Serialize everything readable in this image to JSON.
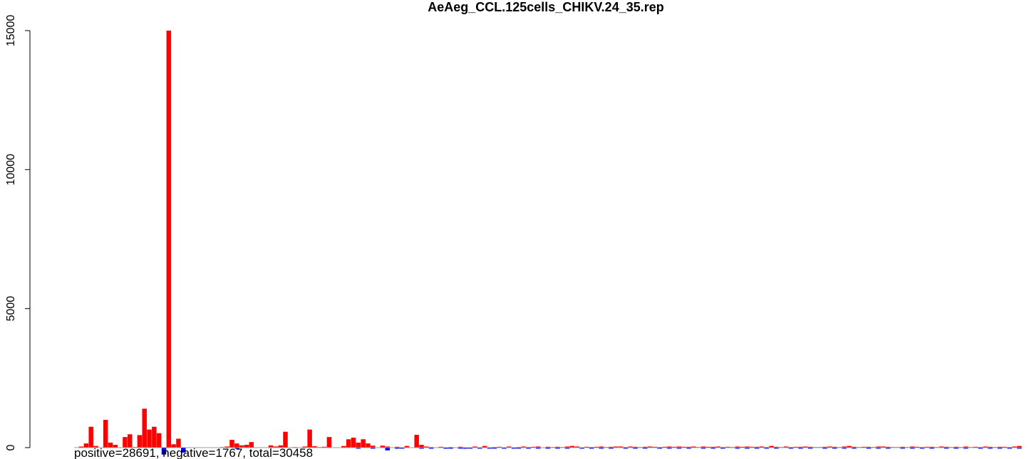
{
  "chart_data": {
    "type": "bar",
    "title": "AeAeg_CCL.125cells_CHIKV.24_35.rep",
    "xlabel": "",
    "ylabel": "",
    "ylim": [
      -50,
      15000
    ],
    "yticks": [
      0,
      5000,
      10000,
      15000
    ],
    "ytick_labels": [
      "0",
      "5000",
      "10000",
      "15000"
    ],
    "grid": false,
    "legend": "none",
    "annotation": "positive=28691, negative=1767, total=30458",
    "colors": {
      "positive": "#ff0000",
      "negative": "#0000ff",
      "baseline": "#999999"
    },
    "positive_values": [
      0,
      40,
      150,
      750,
      60,
      0,
      1000,
      180,
      100,
      0,
      380,
      480,
      20,
      450,
      1400,
      650,
      750,
      520,
      0,
      15000,
      120,
      320,
      0,
      0,
      0,
      0,
      0,
      0,
      0,
      0,
      20,
      40,
      280,
      150,
      80,
      100,
      200,
      0,
      0,
      0,
      80,
      40,
      80,
      570,
      0,
      20,
      0,
      40,
      650,
      50,
      20,
      30,
      380,
      0,
      0,
      60,
      300,
      360,
      180,
      300,
      150,
      70,
      0,
      70,
      40,
      0,
      30,
      0,
      60,
      0,
      460,
      100,
      40,
      20,
      0,
      30,
      0,
      20,
      0,
      30,
      0,
      0,
      40,
      0,
      60,
      0,
      20,
      30,
      0,
      40,
      0,
      20,
      40,
      20,
      30,
      40,
      0,
      30,
      20,
      30,
      20,
      40,
      60,
      40,
      0,
      30,
      20,
      30,
      40,
      20,
      30,
      40,
      40,
      20,
      40,
      30,
      20,
      30,
      40,
      30,
      20,
      30,
      40,
      30,
      40,
      30,
      30,
      40,
      20,
      40,
      30,
      30,
      40,
      20,
      30,
      20,
      40,
      30,
      40,
      30,
      30,
      40,
      20,
      60,
      30,
      20,
      40,
      20,
      30,
      30,
      40,
      30,
      20,
      20,
      30,
      40,
      30,
      20,
      40,
      60,
      30,
      20,
      30,
      30,
      20,
      40,
      40,
      30,
      20,
      20,
      30,
      20,
      40,
      30,
      20,
      30,
      30,
      20,
      40,
      30,
      20,
      30,
      20,
      40,
      20,
      30,
      20,
      40,
      30,
      20,
      30,
      30,
      20,
      40,
      60
    ],
    "negative_values": [
      0,
      0,
      0,
      0,
      0,
      0,
      0,
      0,
      0,
      0,
      0,
      0,
      0,
      0,
      0,
      0,
      0,
      0,
      250,
      0,
      0,
      0,
      180,
      0,
      0,
      0,
      0,
      0,
      0,
      0,
      0,
      0,
      0,
      20,
      0,
      0,
      0,
      0,
      0,
      0,
      0,
      0,
      0,
      0,
      0,
      0,
      0,
      0,
      0,
      0,
      0,
      0,
      0,
      0,
      0,
      0,
      0,
      0,
      20,
      0,
      0,
      20,
      0,
      0,
      100,
      0,
      40,
      20,
      0,
      0,
      0,
      20,
      0,
      40,
      0,
      0,
      40,
      40,
      0,
      20,
      40,
      20,
      0,
      30,
      0,
      20,
      20,
      0,
      20,
      0,
      30,
      20,
      0,
      20,
      0,
      20,
      0,
      20,
      0,
      20,
      0,
      20,
      0,
      0,
      20,
      0,
      20,
      0,
      20,
      0,
      20,
      0,
      0,
      20,
      0,
      20,
      0,
      20,
      0,
      0,
      20,
      0,
      20,
      0,
      20,
      0,
      20,
      0,
      0,
      20,
      0,
      20,
      0,
      20,
      0,
      0,
      20,
      0,
      20,
      0,
      20,
      0,
      20,
      0,
      20,
      0,
      0,
      20,
      0,
      20,
      0,
      20,
      0,
      0,
      20,
      0,
      20,
      0,
      20,
      0,
      20,
      0,
      0,
      20,
      0,
      20,
      0,
      20,
      0,
      0,
      20,
      0,
      20,
      0,
      20,
      0,
      20,
      0,
      0,
      20,
      0,
      20,
      0,
      20,
      0,
      0,
      20,
      0,
      20,
      0,
      20,
      0,
      20,
      0,
      20,
      0,
      0,
      20,
      0
    ]
  }
}
